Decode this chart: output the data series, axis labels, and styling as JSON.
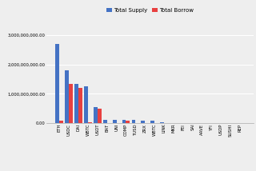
{
  "categories": [
    "ETH",
    "USDC",
    "DAI",
    "WBTC",
    "USDT",
    "BAT",
    "UNI",
    "COMP",
    "TUSD",
    "ZRX",
    "WBTC",
    "LINK",
    "MKR",
    "FEI",
    "SAI",
    "AAVE",
    "YFI",
    "USDP",
    "SUSHI",
    "REP"
  ],
  "total_supply": [
    2700000000,
    1800000000,
    1350000000,
    1250000000,
    550000000,
    120000000,
    110000000,
    110000000,
    100000000,
    90000000,
    75000000,
    30000000,
    15000000,
    5000000,
    2000000,
    1000000,
    800000,
    600000,
    400000,
    200000
  ],
  "total_borrow": [
    80000000,
    1350000000,
    1200000000,
    30000000,
    500000000,
    0,
    0,
    80000000,
    0,
    0,
    0,
    0,
    0,
    0,
    0,
    0,
    0,
    0,
    0,
    0
  ],
  "supply_color": "#4472c4",
  "borrow_color": "#e84040",
  "legend_supply": "Total Supply",
  "legend_borrow": "Total Borrow",
  "ylim": [
    0,
    3500000000
  ],
  "yticks": [
    0,
    1000000000,
    2000000000,
    3000000000
  ],
  "background_color": "#eeeeee",
  "grid_color": "#ffffff",
  "bar_width": 0.4
}
